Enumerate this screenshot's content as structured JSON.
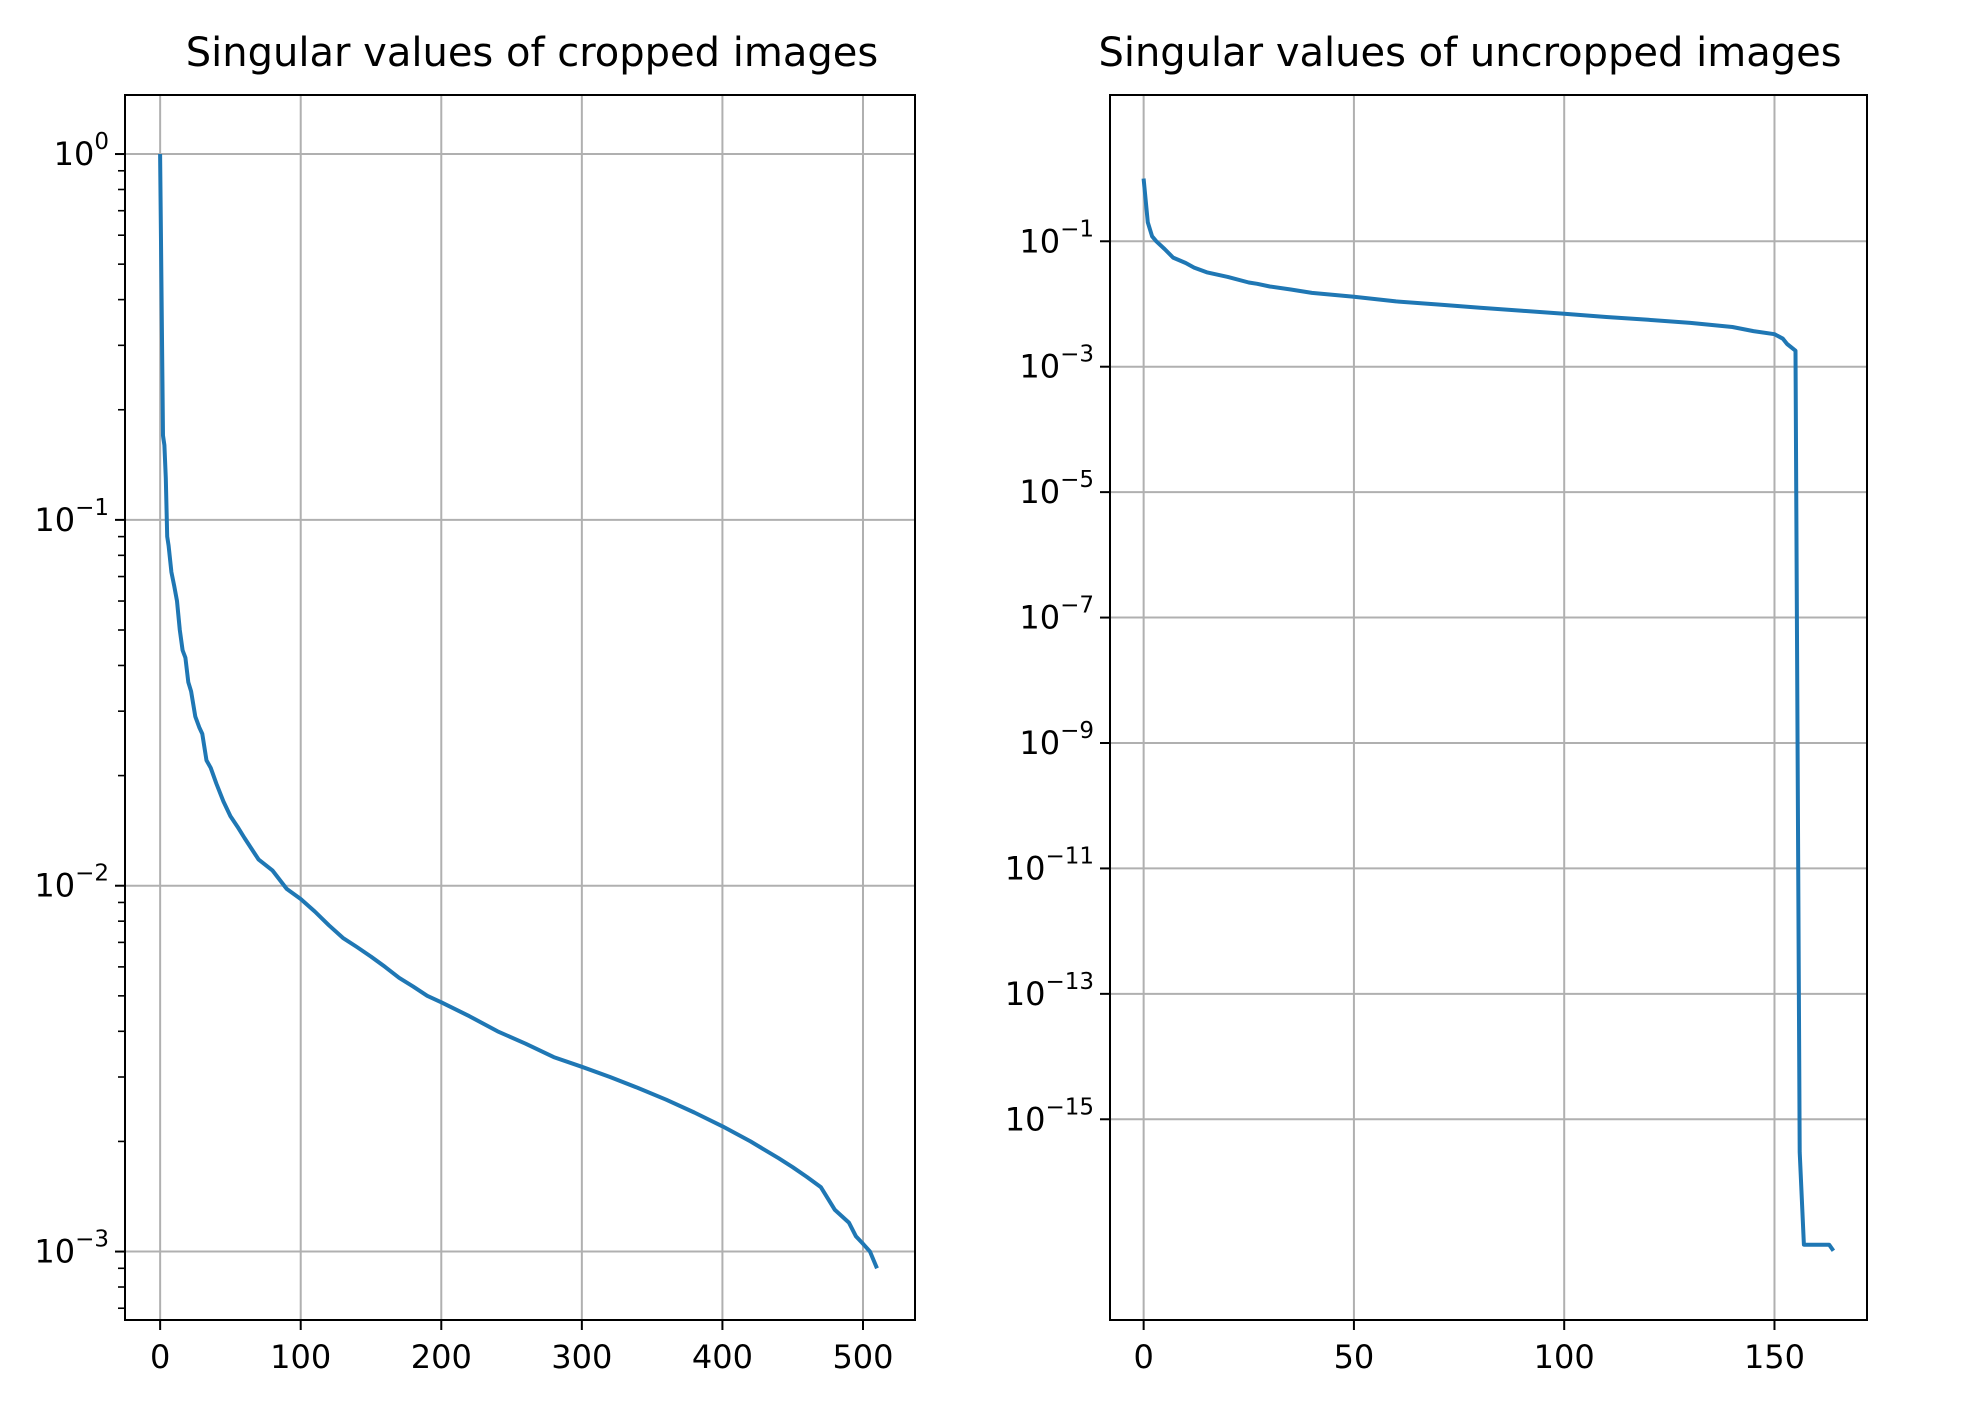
{
  "chart_data": [
    {
      "type": "line",
      "title": "Singular values of cropped images",
      "xlabel": "",
      "ylabel": "",
      "xlim": [
        -25,
        537
      ],
      "xscale": "linear",
      "yscale": "log",
      "ylim": [
        0.00065,
        1.45
      ],
      "xticks": [
        0,
        100,
        200,
        300,
        400,
        500
      ],
      "xtick_labels": [
        "0",
        "100",
        "200",
        "300",
        "400",
        "500"
      ],
      "yticks": [
        0.001,
        0.01,
        0.1,
        1
      ],
      "ytick_labels": [
        {
          "base": "10",
          "exp": "−3"
        },
        {
          "base": "10",
          "exp": "−2"
        },
        {
          "base": "10",
          "exp": "−1"
        },
        {
          "base": "10",
          "exp": "0"
        }
      ],
      "grid": true,
      "series": [
        {
          "color": "#1f77b4",
          "x": [
            0,
            2,
            3,
            4,
            5,
            6,
            8,
            10,
            12,
            14,
            16,
            18,
            20,
            22,
            25,
            28,
            30,
            33,
            36,
            40,
            45,
            50,
            55,
            60,
            70,
            80,
            90,
            100,
            110,
            120,
            130,
            140,
            150,
            160,
            170,
            180,
            190,
            200,
            220,
            240,
            260,
            280,
            300,
            320,
            340,
            360,
            380,
            400,
            420,
            440,
            450,
            460,
            470,
            480,
            490,
            495,
            500,
            505,
            510
          ],
          "y": [
            1.0,
            0.17,
            0.16,
            0.13,
            0.09,
            0.085,
            0.072,
            0.066,
            0.06,
            0.05,
            0.044,
            0.042,
            0.036,
            0.034,
            0.029,
            0.027,
            0.026,
            0.022,
            0.021,
            0.019,
            0.017,
            0.0155,
            0.0145,
            0.0135,
            0.0118,
            0.011,
            0.0098,
            0.0092,
            0.0085,
            0.0078,
            0.0072,
            0.0068,
            0.0064,
            0.006,
            0.0056,
            0.0053,
            0.005,
            0.0048,
            0.0044,
            0.004,
            0.0037,
            0.0034,
            0.0032,
            0.003,
            0.0028,
            0.0026,
            0.0024,
            0.0022,
            0.002,
            0.0018,
            0.0017,
            0.0016,
            0.0015,
            0.0013,
            0.0012,
            0.0011,
            0.00105,
            0.001,
            0.0009
          ]
        }
      ]
    },
    {
      "type": "line",
      "title": "Singular values of uncropped images",
      "xlabel": "",
      "ylabel": "",
      "xlim": [
        -8,
        172
      ],
      "xscale": "linear",
      "yscale": "log",
      "ylim": [
        6.3e-19,
        21.5
      ],
      "xticks": [
        0,
        50,
        100,
        150
      ],
      "xtick_labels": [
        "0",
        "50",
        "100",
        "150"
      ],
      "yticks": [
        1e-15,
        1e-13,
        1e-11,
        1e-09,
        1e-07,
        1e-05,
        0.001,
        0.1
      ],
      "ytick_labels": [
        {
          "base": "10",
          "exp": "−15"
        },
        {
          "base": "10",
          "exp": "−13"
        },
        {
          "base": "10",
          "exp": "−11"
        },
        {
          "base": "10",
          "exp": "−9"
        },
        {
          "base": "10",
          "exp": "−7"
        },
        {
          "base": "10",
          "exp": "−5"
        },
        {
          "base": "10",
          "exp": "−3"
        },
        {
          "base": "10",
          "exp": "−1"
        }
      ],
      "grid": true,
      "series": [
        {
          "color": "#1f77b4",
          "x": [
            0,
            1,
            2,
            3,
            5,
            7,
            10,
            12,
            15,
            20,
            25,
            27,
            30,
            35,
            40,
            50,
            60,
            70,
            80,
            90,
            100,
            110,
            120,
            130,
            140,
            145,
            150,
            152,
            153,
            155,
            156,
            157,
            160,
            163,
            164
          ],
          "y": [
            1.0,
            0.2,
            0.12,
            0.1,
            0.075,
            0.055,
            0.045,
            0.038,
            0.032,
            0.027,
            0.022,
            0.021,
            0.019,
            0.017,
            0.015,
            0.013,
            0.011,
            0.0098,
            0.0087,
            0.0078,
            0.007,
            0.0062,
            0.0056,
            0.005,
            0.0043,
            0.0037,
            0.0033,
            0.0028,
            0.0023,
            0.0018,
            3e-16,
            1e-17,
            1e-17,
            1e-17,
            8e-18
          ]
        }
      ]
    }
  ],
  "panels": [
    {
      "box": [
        125,
        95,
        915,
        1320
      ]
    },
    {
      "box": [
        1110,
        95,
        1867,
        1320
      ]
    }
  ]
}
